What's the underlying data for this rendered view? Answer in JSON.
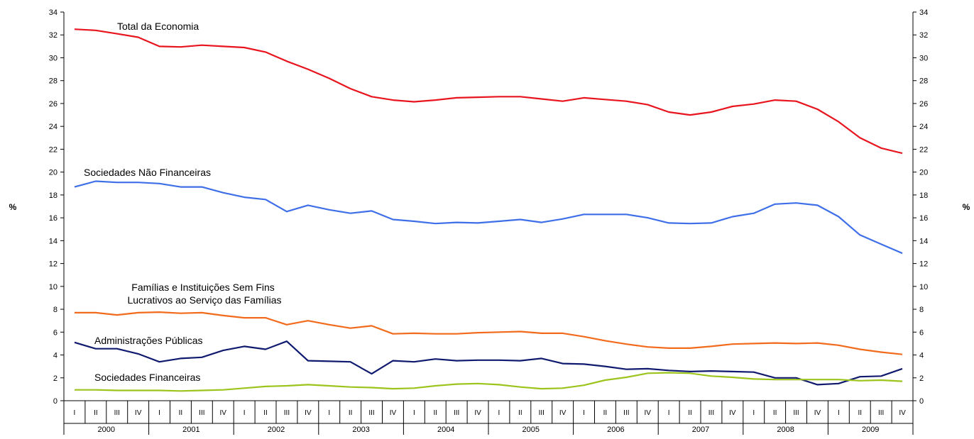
{
  "chart_data": {
    "type": "line",
    "ylim": [
      0,
      34
    ],
    "ytick_step": 2,
    "y_unit_left": "%",
    "y_unit_right": "%",
    "quarter_labels": [
      "I",
      "II",
      "III",
      "IV"
    ],
    "years": [
      "2000",
      "2001",
      "2002",
      "2003",
      "2004",
      "2005",
      "2006",
      "2007",
      "2008",
      "2009"
    ],
    "grid": false,
    "series": [
      {
        "name": "Total da Economia",
        "color": "#e8141e",
        "values": [
          32.5,
          32.4,
          32.1,
          31.8,
          31.0,
          30.95,
          31.1,
          31.0,
          30.9,
          30.5,
          29.7,
          29.0,
          28.2,
          27.3,
          26.6,
          26.3,
          26.15,
          26.3,
          26.5,
          26.55,
          26.6,
          26.6,
          26.4,
          26.2,
          26.5,
          26.35,
          26.2,
          25.9,
          25.25,
          25.0,
          25.25,
          25.75,
          25.95,
          26.3,
          26.2,
          25.5,
          24.4,
          23.0,
          22.1,
          21.65
        ]
      },
      {
        "name": "Sociedades Não Financeiras",
        "color": "#3f6fe8",
        "values": [
          18.7,
          19.2,
          19.1,
          19.1,
          19.0,
          18.7,
          18.7,
          18.2,
          17.8,
          17.6,
          16.55,
          17.1,
          16.7,
          16.4,
          16.6,
          15.85,
          15.7,
          15.5,
          15.6,
          15.55,
          15.7,
          15.85,
          15.6,
          15.9,
          16.3,
          16.3,
          16.3,
          16.0,
          15.55,
          15.5,
          15.55,
          16.1,
          16.4,
          17.2,
          17.3,
          17.1,
          16.1,
          14.5,
          13.7,
          12.9
        ]
      },
      {
        "name": "Famílias e Instituições Sem Fins Lucrativos ao Serviço das Famílias",
        "color": "#f26a1c",
        "values": [
          7.7,
          7.7,
          7.5,
          7.7,
          7.75,
          7.65,
          7.7,
          7.45,
          7.25,
          7.25,
          6.65,
          7.0,
          6.65,
          6.35,
          6.55,
          5.85,
          5.9,
          5.85,
          5.85,
          5.95,
          6.0,
          6.05,
          5.9,
          5.9,
          5.6,
          5.25,
          4.95,
          4.7,
          4.6,
          4.6,
          4.75,
          4.95,
          5.0,
          5.05,
          5.0,
          5.05,
          4.85,
          4.5,
          4.25,
          4.05
        ]
      },
      {
        "name": "Administrações Públicas",
        "color": "#101a6e",
        "values": [
          5.1,
          4.55,
          4.55,
          4.1,
          3.4,
          3.7,
          3.8,
          4.4,
          4.75,
          4.5,
          5.2,
          3.5,
          3.45,
          3.4,
          2.35,
          3.5,
          3.4,
          3.65,
          3.5,
          3.55,
          3.55,
          3.5,
          3.7,
          3.25,
          3.2,
          3.0,
          2.75,
          2.8,
          2.65,
          2.55,
          2.6,
          2.55,
          2.5,
          2.0,
          2.0,
          1.4,
          1.5,
          2.1,
          2.15,
          2.8
        ]
      },
      {
        "name": "Sociedades Financeiras",
        "color": "#9cc41c",
        "values": [
          0.95,
          0.95,
          0.9,
          0.9,
          0.9,
          0.85,
          0.9,
          0.95,
          1.1,
          1.25,
          1.3,
          1.4,
          1.3,
          1.2,
          1.15,
          1.05,
          1.1,
          1.3,
          1.45,
          1.5,
          1.4,
          1.2,
          1.05,
          1.1,
          1.35,
          1.8,
          2.05,
          2.4,
          2.45,
          2.4,
          2.15,
          2.05,
          1.9,
          1.85,
          1.85,
          1.85,
          1.85,
          1.75,
          1.8,
          1.7
        ]
      }
    ]
  }
}
